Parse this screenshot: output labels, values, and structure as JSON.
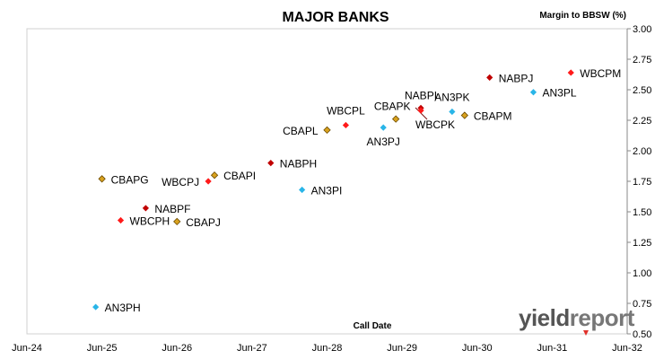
{
  "chart_data": {
    "type": "scatter",
    "title": "MAJOR BANKS",
    "xlabel": "Call Date",
    "ylabel": "Margin to BBSW (%)",
    "xlim": [
      "2024-06",
      "2032-06"
    ],
    "ylim": [
      0.5,
      3.0
    ],
    "x_ticks": [
      "Jun-24",
      "Jun-25",
      "Jun-26",
      "Jun-27",
      "Jun-28",
      "Jun-29",
      "Jun-30",
      "Jun-31",
      "Jun-32"
    ],
    "y_ticks": [
      "0.50",
      "0.75",
      "1.00",
      "1.25",
      "1.50",
      "1.75",
      "2.00",
      "2.25",
      "2.50",
      "2.75",
      "3.00"
    ],
    "grid": false,
    "colors": {
      "ANZ": "#29b5e8",
      "CBA": "#d9a21f",
      "NAB": "#c00000",
      "WBC": "#ff1a1a"
    },
    "points": [
      {
        "label": "AN3PH",
        "x": "2025-05",
        "y": 0.72,
        "issuer": "ANZ"
      },
      {
        "label": "CBAPG",
        "x": "2025-06",
        "y": 1.77,
        "issuer": "CBA"
      },
      {
        "label": "WBCPH",
        "x": "2025-09",
        "y": 1.43,
        "issuer": "WBC"
      },
      {
        "label": "NABPF",
        "x": "2026-01",
        "y": 1.53,
        "issuer": "NAB"
      },
      {
        "label": "CBAPJ",
        "x": "2026-06",
        "y": 1.42,
        "issuer": "CBA"
      },
      {
        "label": "WBCPJ",
        "x": "2026-11",
        "y": 1.75,
        "issuer": "WBC"
      },
      {
        "label": "CBAPI",
        "x": "2026-12",
        "y": 1.8,
        "issuer": "CBA"
      },
      {
        "label": "NABPH",
        "x": "2027-09",
        "y": 1.9,
        "issuer": "NAB"
      },
      {
        "label": "AN3PI",
        "x": "2028-02",
        "y": 1.68,
        "issuer": "ANZ"
      },
      {
        "label": "CBAPL",
        "x": "2028-06",
        "y": 2.17,
        "issuer": "CBA"
      },
      {
        "label": "WBCPL",
        "x": "2028-09",
        "y": 2.21,
        "issuer": "WBC"
      },
      {
        "label": "AN3PJ",
        "x": "2029-03",
        "y": 2.19,
        "issuer": "ANZ"
      },
      {
        "label": "CBAPK",
        "x": "2029-05",
        "y": 2.26,
        "issuer": "CBA"
      },
      {
        "label": "NABPI",
        "x": "2029-09",
        "y": 2.35,
        "issuer": "NAB"
      },
      {
        "label": "WBCPK",
        "x": "2029-09",
        "y": 2.33,
        "issuer": "WBC"
      },
      {
        "label": "AN3PK",
        "x": "2030-02",
        "y": 2.32,
        "issuer": "ANZ"
      },
      {
        "label": "CBAPM",
        "x": "2030-04",
        "y": 2.29,
        "issuer": "CBA"
      },
      {
        "label": "NABPJ",
        "x": "2030-08",
        "y": 2.6,
        "issuer": "NAB"
      },
      {
        "label": "AN3PL",
        "x": "2031-03",
        "y": 2.48,
        "issuer": "ANZ"
      },
      {
        "label": "WBCPM",
        "x": "2031-09",
        "y": 2.64,
        "issuer": "WBC"
      }
    ]
  },
  "watermark": {
    "part1": "yield",
    "part2": "report"
  }
}
